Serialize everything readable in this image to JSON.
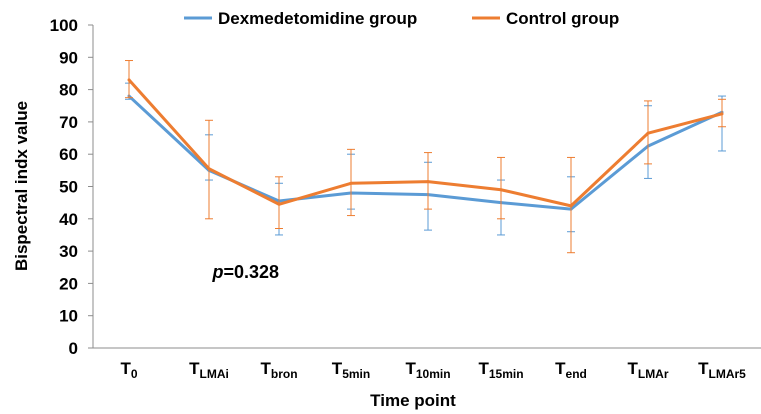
{
  "chart_data": {
    "type": "line",
    "xlabel": "Time point",
    "ylabel": "Bispectral indx value",
    "ylim": [
      0,
      100
    ],
    "yticks": [
      0,
      10,
      20,
      30,
      40,
      50,
      60,
      70,
      80,
      90,
      100
    ],
    "grid": false,
    "legend_position": "top",
    "categories": [
      {
        "main": "T",
        "sub": "0"
      },
      {
        "main": "T",
        "sub": "LMAi"
      },
      {
        "main": "T",
        "sub": "bron"
      },
      {
        "main": "T",
        "sub": "5min"
      },
      {
        "main": "T",
        "sub": "10min"
      },
      {
        "main": "T",
        "sub": "15min"
      },
      {
        "main": "T",
        "sub": "end"
      },
      {
        "main": "T",
        "sub": "LMAr"
      },
      {
        "main": "T",
        "sub": "LMAr5"
      }
    ],
    "series": [
      {
        "name": "Dexmedetomidine group",
        "color": "#5b9bd5",
        "values": [
          78,
          55,
          45.5,
          48,
          47.5,
          45,
          43,
          62.5,
          73
        ],
        "error_upper": [
          82,
          66,
          51,
          60,
          57.5,
          52,
          53,
          75,
          78
        ],
        "error_lower": [
          77,
          52,
          35,
          43,
          36.5,
          35,
          36,
          52.5,
          61
        ]
      },
      {
        "name": "Control group",
        "color": "#ed7d31",
        "values": [
          83,
          55.5,
          44.5,
          51,
          51.5,
          49,
          44,
          66.5,
          72.5
        ],
        "error_upper": [
          89,
          70.5,
          53,
          61.5,
          60.5,
          59,
          59,
          76.5,
          77
        ],
        "error_lower": [
          77.5,
          40,
          37,
          41,
          43,
          40,
          29.5,
          57,
          68.5
        ]
      }
    ],
    "annotation": {
      "italic": "p",
      "text": "=0.328",
      "x_index": 1.05,
      "y_value": 23.5
    }
  }
}
